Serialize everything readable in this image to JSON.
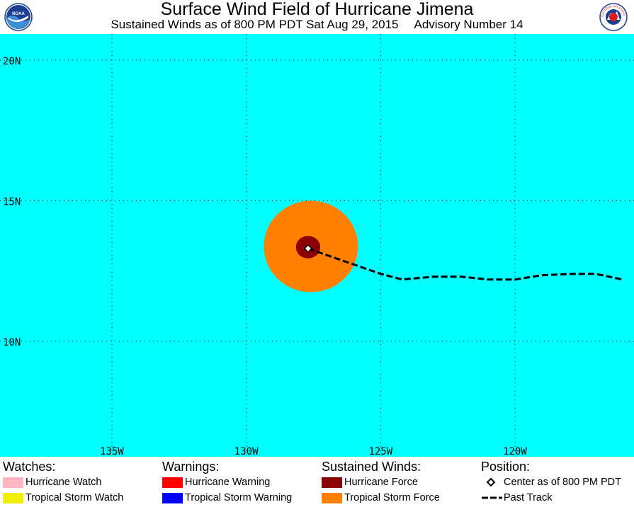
{
  "header": {
    "title": "Surface Wind Field of Hurricane Jimena",
    "subtitle_left": "Sustained Winds as of 800 PM PDT Sat Aug 29, 2015",
    "subtitle_right": "Advisory Number 14",
    "logo_left_text": "NOAA",
    "logo_right_text": "NATIONAL WEATHER SERVICE"
  },
  "map": {
    "background_color": "#00ffff",
    "lat_labels": [
      "20N",
      "15N",
      "10N"
    ],
    "lon_labels": [
      "135W",
      "130W",
      "125W",
      "120W"
    ],
    "lat_values": [
      20,
      15,
      10
    ],
    "lon_values": [
      -135,
      -130,
      -125,
      -120
    ],
    "center": {
      "lat": 13.3,
      "lon": -127.7
    },
    "tropical_storm_radius_deg": 1.7,
    "hurricane_radius_deg": 0.4,
    "past_track": [
      [
        -127.7,
        13.3
      ],
      [
        -126.5,
        12.9
      ],
      [
        -125.0,
        12.4
      ],
      [
        -124.2,
        12.2
      ],
      [
        -123.0,
        12.3
      ],
      [
        -122.0,
        12.3
      ],
      [
        -121.0,
        12.2
      ],
      [
        -120.0,
        12.2
      ],
      [
        -119.0,
        12.35
      ],
      [
        -117.8,
        12.4
      ],
      [
        -117.0,
        12.4
      ],
      [
        -116.0,
        12.2
      ]
    ]
  },
  "colors": {
    "hurricane_watch": "#ffb6c1",
    "tropical_storm_watch": "#f0f000",
    "hurricane_warning": "#ff0000",
    "tropical_storm_warning": "#0000ff",
    "hurricane_force": "#8b0000",
    "tropical_storm_force": "#ff8000"
  },
  "legend": {
    "watches": {
      "heading": "Watches:",
      "hurricane": "Hurricane Watch",
      "tropical_storm": "Tropical Storm Watch"
    },
    "warnings": {
      "heading": "Warnings:",
      "hurricane": "Hurricane Warning",
      "tropical_storm": "Tropical Storm Warning"
    },
    "sustained_winds": {
      "heading": "Sustained Winds:",
      "hurricane": "Hurricane Force",
      "tropical_storm": "Tropical Storm Force"
    },
    "position": {
      "heading": "Position:",
      "center": "Center as of 800 PM PDT",
      "track": "Past Track"
    }
  }
}
